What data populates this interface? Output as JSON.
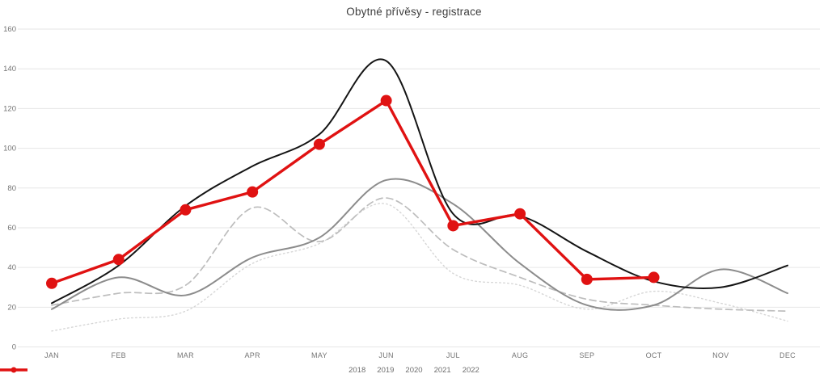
{
  "title": "Obytné přívěsy - registrace",
  "colors": {
    "series_2018": "#d6d6d6",
    "series_2019": "#bdbdbd",
    "series_2020": "#8c8c8c",
    "series_2021": "#141414",
    "series_2022": "#e01212",
    "gridline": "#e6e6e6",
    "axis_text": "#757575",
    "title_text": "#3d3d3d"
  },
  "chart_data": {
    "type": "line",
    "title": "Obytné přívěsy - registrace",
    "categories": [
      "JAN",
      "FEB",
      "MAR",
      "APR",
      "MAY",
      "JUN",
      "JUL",
      "AUG",
      "SEP",
      "OCT",
      "NOV",
      "DEC"
    ],
    "series": [
      {
        "name": "2018",
        "style": "dotted",
        "color": "#d6d6d6",
        "smooth": true,
        "values": [
          8,
          14,
          18,
          42,
          52,
          72,
          37,
          31,
          19,
          28,
          22,
          13
        ]
      },
      {
        "name": "2019",
        "style": "dashed",
        "color": "#bdbdbd",
        "smooth": true,
        "values": [
          21,
          27,
          31,
          70,
          53,
          75,
          49,
          35,
          24,
          21,
          19,
          18
        ]
      },
      {
        "name": "2020",
        "style": "solid",
        "color": "#8c8c8c",
        "smooth": true,
        "values": [
          19,
          35,
          26,
          45,
          55,
          84,
          72,
          42,
          21,
          21,
          39,
          27
        ]
      },
      {
        "name": "2021",
        "style": "solid",
        "color": "#141414",
        "smooth": true,
        "values": [
          22,
          41,
          71,
          91,
          107,
          144,
          67,
          66,
          48,
          33,
          30,
          41
        ]
      },
      {
        "name": "2022",
        "style": "solid-markers",
        "color": "#e01212",
        "smooth": false,
        "values": [
          32,
          44,
          69,
          78,
          102,
          124,
          61,
          67,
          34,
          35,
          null,
          null
        ]
      }
    ],
    "ylim": [
      0,
      160
    ],
    "ytick_step": 20,
    "grid": true,
    "legend_position": "bottom"
  }
}
